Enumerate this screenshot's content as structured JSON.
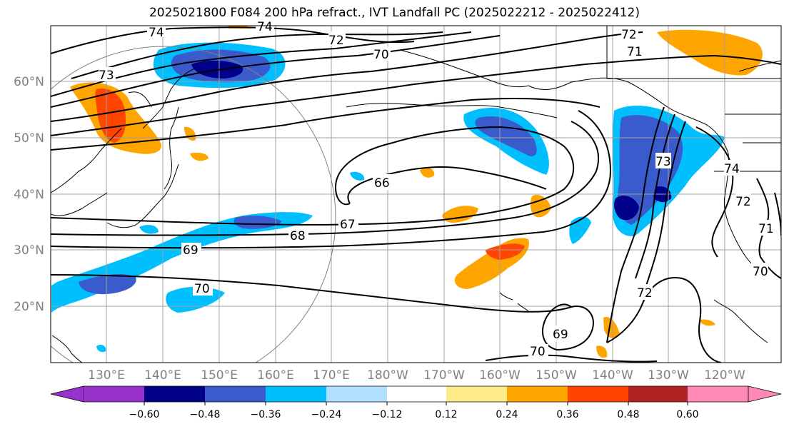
{
  "title": "2025021800 F084 200 hPa refract., IVT Landfall PC (2025022212 - 2025022412)",
  "lat_labels": [
    "60°N",
    "50°N",
    "40°N",
    "30°N",
    "20°N"
  ],
  "lon_labels": [
    "130°E",
    "140°E",
    "150°E",
    "160°E",
    "170°E",
    "180°W",
    "170°W",
    "160°W",
    "150°W",
    "140°W",
    "130°W",
    "120°W"
  ],
  "contour_labels": [
    "74",
    "74",
    "72",
    "72",
    "71",
    "70",
    "73",
    "66",
    "67",
    "68",
    "69",
    "70",
    "73",
    "74",
    "72",
    "72",
    "69",
    "70",
    "70",
    "71"
  ],
  "colorbar": {
    "ticks": [
      "−0.60",
      "−0.48",
      "−0.36",
      "−0.24",
      "−0.12",
      "0.12",
      "0.24",
      "0.36",
      "0.48",
      "0.60"
    ],
    "colors": [
      "#9932cc",
      "#00008b",
      "#3a5bcc",
      "#00bfff",
      "#b0e0ff",
      "#ffffff",
      "#ffeb8a",
      "#ffa500",
      "#ff4500",
      "#b22222",
      "#ff88b4"
    ]
  },
  "colors": {
    "contour": "#000000",
    "grid": "#a0a0a0",
    "coast": "#000000",
    "circle": "#808080"
  }
}
